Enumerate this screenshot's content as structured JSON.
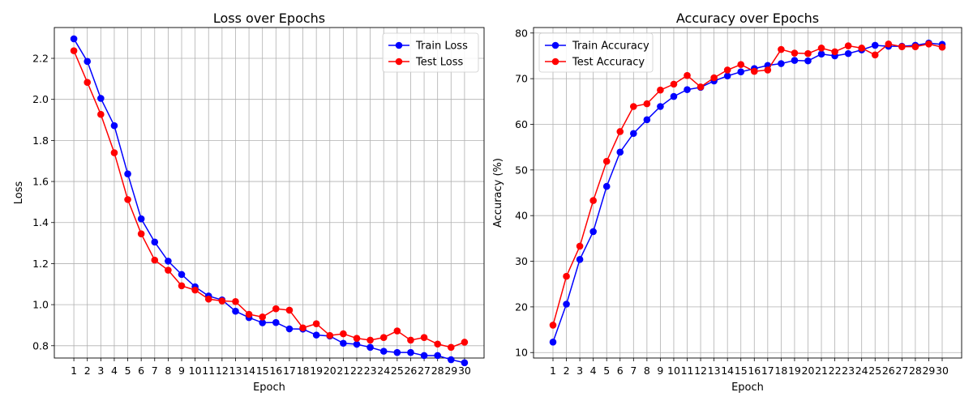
{
  "chart_data": [
    {
      "type": "line",
      "title": "Loss over Epochs",
      "xlabel": "Epoch",
      "ylabel": "Loss",
      "x": [
        1,
        2,
        3,
        4,
        5,
        6,
        7,
        8,
        9,
        10,
        11,
        12,
        13,
        14,
        15,
        16,
        17,
        18,
        19,
        20,
        21,
        22,
        23,
        24,
        25,
        26,
        27,
        28,
        29,
        30
      ],
      "xticks": [
        "1",
        "2",
        "3",
        "4",
        "5",
        "6",
        "7",
        "8",
        "9",
        "10",
        "11",
        "12",
        "13",
        "14",
        "15",
        "16",
        "17",
        "18",
        "19",
        "20",
        "21",
        "22",
        "23",
        "24",
        "25",
        "26",
        "27",
        "28",
        "29",
        "30"
      ],
      "ylim": [
        0.74,
        2.35
      ],
      "yticks": [
        0.8,
        1.0,
        1.2,
        1.4,
        1.6,
        1.8,
        2.0,
        2.2
      ],
      "ytick_labels": [
        "0.8",
        "1.0",
        "1.2",
        "1.4",
        "1.6",
        "1.8",
        "2.0",
        "2.2"
      ],
      "grid": true,
      "legend_position": "top-right",
      "series": [
        {
          "name": "Train Loss",
          "color": "#0000ff",
          "values": [
            2.295,
            2.185,
            2.005,
            1.872,
            1.637,
            1.418,
            1.305,
            1.212,
            1.147,
            1.087,
            1.042,
            1.023,
            0.968,
            0.937,
            0.912,
            0.913,
            0.882,
            0.881,
            0.852,
            0.847,
            0.812,
            0.807,
            0.792,
            0.773,
            0.767,
            0.767,
            0.752,
            0.752,
            0.732,
            0.717
          ]
        },
        {
          "name": "Test Loss",
          "color": "#ff0000",
          "values": [
            2.237,
            2.083,
            1.927,
            1.74,
            1.512,
            1.345,
            1.217,
            1.168,
            1.092,
            1.071,
            1.027,
            1.018,
            1.015,
            0.953,
            0.94,
            0.98,
            0.973,
            0.887,
            0.907,
            0.85,
            0.858,
            0.836,
            0.827,
            0.84,
            0.872,
            0.827,
            0.84,
            0.808,
            0.792,
            0.817
          ]
        }
      ]
    },
    {
      "type": "line",
      "title": "Accuracy over Epochs",
      "xlabel": "Epoch",
      "ylabel": "Accuracy (%)",
      "x": [
        1,
        2,
        3,
        4,
        5,
        6,
        7,
        8,
        9,
        10,
        11,
        12,
        13,
        14,
        15,
        16,
        17,
        18,
        19,
        20,
        21,
        22,
        23,
        24,
        25,
        26,
        27,
        28,
        29,
        30
      ],
      "xticks": [
        "1",
        "2",
        "3",
        "4",
        "5",
        "6",
        "7",
        "8",
        "9",
        "10",
        "11",
        "12",
        "13",
        "14",
        "15",
        "16",
        "17",
        "18",
        "19",
        "20",
        "21",
        "22",
        "23",
        "24",
        "25",
        "26",
        "27",
        "28",
        "29",
        "30"
      ],
      "ylim": [
        8.8,
        81.2
      ],
      "yticks": [
        10,
        20,
        30,
        40,
        50,
        60,
        70,
        80
      ],
      "ytick_labels": [
        "10",
        "20",
        "30",
        "40",
        "50",
        "60",
        "70",
        "80"
      ],
      "grid": true,
      "legend_position": "top-left",
      "series": [
        {
          "name": "Train Accuracy",
          "color": "#0000ff",
          "values": [
            12.3,
            20.6,
            30.4,
            36.5,
            46.4,
            53.9,
            58.0,
            61.0,
            63.9,
            66.1,
            67.6,
            68.1,
            69.5,
            70.6,
            71.5,
            72.2,
            72.9,
            73.3,
            74.0,
            73.9,
            75.4,
            75.0,
            75.5,
            76.3,
            77.3,
            77.1,
            77.1,
            77.3,
            77.8,
            77.5
          ]
        },
        {
          "name": "Test Accuracy",
          "color": "#ff0000",
          "values": [
            16.0,
            26.7,
            33.3,
            43.3,
            51.9,
            58.4,
            63.9,
            64.5,
            67.5,
            68.8,
            70.7,
            68.2,
            70.2,
            71.9,
            73.1,
            71.6,
            71.9,
            76.4,
            75.6,
            75.5,
            76.7,
            75.9,
            77.2,
            76.7,
            75.2,
            77.6,
            77.0,
            77.0,
            77.6,
            76.9
          ]
        }
      ]
    }
  ]
}
